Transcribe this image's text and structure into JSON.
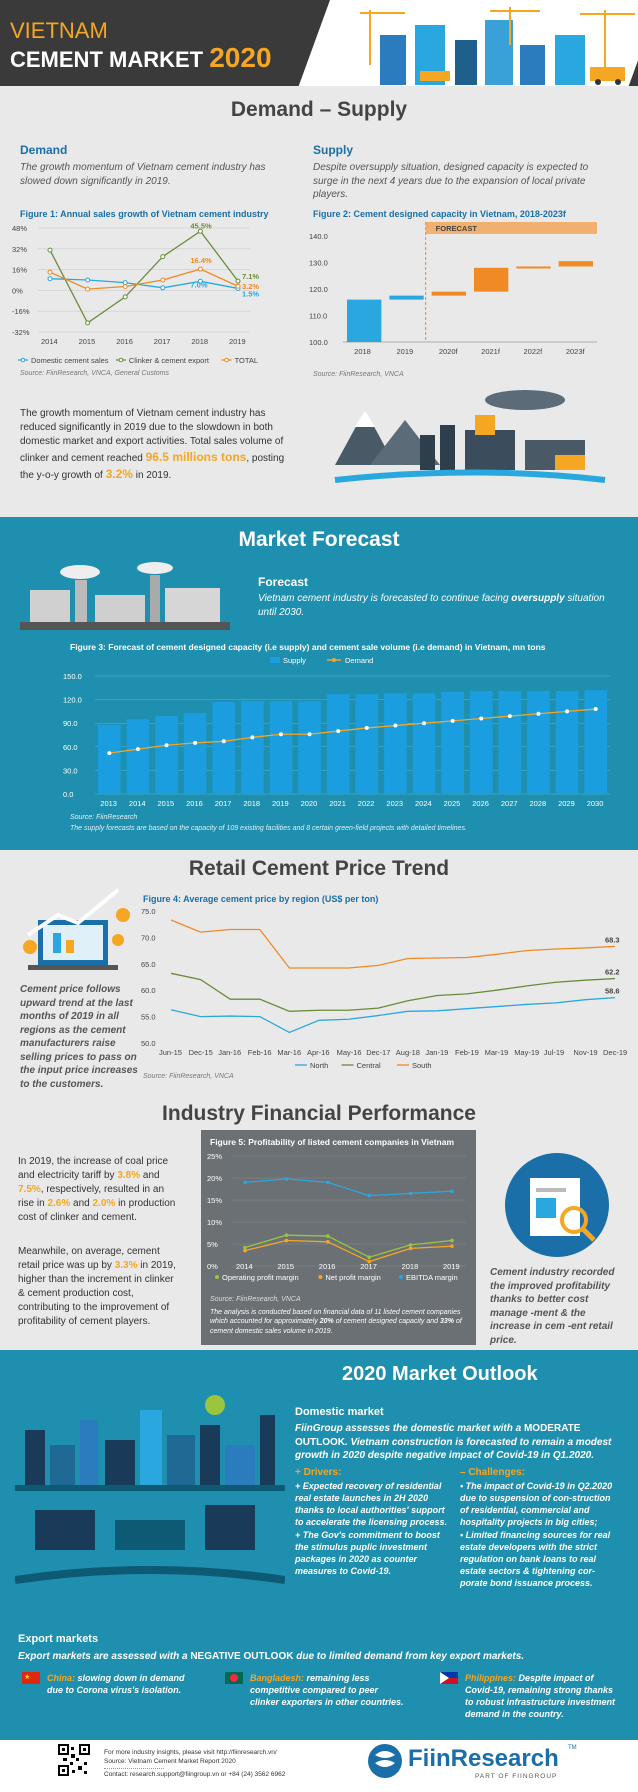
{
  "header": {
    "line1": "VIETNAM",
    "line2": "CEMENT MARKET",
    "year": "2020"
  },
  "demand_supply": {
    "title": "Demand – Supply",
    "demand_heading": "Demand",
    "demand_text": "The growth momentum of Vietnam cement industry has slowed down significantly in 2019.",
    "supply_heading": "Supply",
    "supply_text": "Despite oversupply situation, designed capacity is expected to surge in the next 4 years due to the expansion of local private players.",
    "para1": "The growth momentum of Vietnam cement industry has reduced significantly in 2019 due to the slowdown in both domestic market and export activities. Total sales volume of clinker and cement reached ",
    "para1_hl1": "96.5 millions tons",
    "para1_mid": ", posting the y-o-y growth of ",
    "para1_hl2": "3.2%",
    "para1_end": " in 2019."
  },
  "fig1": {
    "title": "Figure 1: Annual sales growth of Vietnam cement industry",
    "source": "Source: FiinResearch, VNCA, General Customs",
    "legend": [
      "Domestic cement sales",
      "Clinker & cement export",
      "TOTAL"
    ],
    "labels": [
      "45.5%",
      "16.4%",
      "7.0%",
      "7.1%",
      "3.2%",
      "1.5%"
    ]
  },
  "fig2": {
    "title": "Figure 2: Cement designed capacity in Vietnam, 2018-2023f",
    "forecast_label": "FORECAST",
    "source": "Source: FiinResearch, VNCA"
  },
  "market_forecast": {
    "title": "Market Forecast",
    "heading": "Forecast",
    "text_a": "Vietnam cement industry is forecasted to continue facing ",
    "text_b": "oversupply",
    "text_c": " situation until 2030.",
    "fig_title": "Figure 3: Forecast of cement designed capacity (i.e supply) and cement sale volume (i.e demand) in Vietnam, mn tons",
    "source": "Source: FiinResearch",
    "note": "The supply forecasts are based on the capacity of 109 existing facilities and 8 certain green-field projects with detailed timelines."
  },
  "retail": {
    "title": "Retail Cement Price Trend",
    "fig_title": "Figure 4: Average cement price by region (US$ per ton)",
    "side_text": "Cement price follows upward trend at the last months of 2019 in all regions as the cement manufacturers raise selling prices to pass on the input price increases to the customers.",
    "source": "Source: FiinResearch, VNCA"
  },
  "financial": {
    "title": "Industry Financial Performance",
    "p1_a": "In 2019, the increase of coal price and electricity tariff by ",
    "p1_h1": "3.8%",
    "p1_b": " and ",
    "p1_h2": "7.5%",
    "p1_c": ", respectively, resulted in an rise in ",
    "p1_h3": "2.6%",
    "p1_d": " and ",
    "p1_h4": "2.0%",
    "p1_e": " in production cost of clinker and cement.",
    "p2_a": "Meanwhile, on average, cement retail price was up by ",
    "p2_h": "3.3%",
    "p2_b": " in 2019, higher than the increment in clinker & cement production cost, contributing to the improvement of profitability of cement players.",
    "fig_title": "Figure 5: Profitability of listed cement companies in Vietnam",
    "source": "Source: FiinResearch, VNCA",
    "note_a": "The analysis is conducted based on financial data of 11 listed cement companies which accounted for approximately ",
    "note_h1": "20%",
    "note_b": " of cement designed capacity and ",
    "note_h2": "33%",
    "note_c": " of cement domestic sales volume in 2019.",
    "right_text": "Cement industry recorded the improved profitability thanks to better cost manage -ment & the increase in cem -ent retail price."
  },
  "outlook": {
    "title": "2020 Market Outlook",
    "domestic_heading": "Domestic market",
    "domestic_a": "FiinGroup assesses the domestic market with a ",
    "domestic_h": "MODERATE OUTLOOK",
    "domestic_b": ". Vietnam construction is forecasted to remain a modest growth in 2020 despite negative impact of Covid-19 in Q1.2020.",
    "drivers_heading": "+ Drivers:",
    "drivers": [
      "+ Expected recovery of residential real estate launches in 2H 2020 thanks to local authorities' support to accelerate the licensing process.",
      "+ The Gov's commitment to boost the stimulus puplic investment packages in 2020 as counter measures to Covid-19."
    ],
    "challenges_heading": "– Challenges:",
    "challenges": [
      "• The impact of Covid-19 in Q2.2020 due to suspension of con-struction of residential, commercial and hospitality projects in big cities;",
      "• Limited financing sources for real estate developers with the strict regulation on bank loans to real estate sectors & tightening cor-porate bond issuance process."
    ],
    "export_heading": "Export markets",
    "export_a": "Export markets are assessed with a ",
    "export_h": "NEGATIVE OUTLOOK",
    "export_b": " due to limited demand from key export markets.",
    "countries": [
      {
        "name": "China:",
        "text": " slowing down in demand due to Corona virus's isolation."
      },
      {
        "name": "Bangladesh:",
        "text": " remaining less competitive compared to peer clinker exporters in other countries."
      },
      {
        "name": "Philippines:",
        "text": " Despite impact of Covid-19, remaining strong thanks to robust infrastructure investment demand in the country."
      }
    ]
  },
  "footer": {
    "line1": "For more industry insights, please visit http://fiinresearch.vn/",
    "line2": "Source: Vietnam Cement Market Report 2020",
    "line3": "Contact: research.support@fiingroup.vn or +84 (24) 3562 6962",
    "brand": "FiinResearch",
    "tm": "TM",
    "tagline": "PART OF FIINGROUP"
  },
  "chart_data": [
    {
      "type": "line",
      "title": "Figure 1: Annual sales growth of Vietnam cement industry",
      "x": [
        2014,
        2015,
        2016,
        2017,
        2018,
        2019
      ],
      "ylim": [
        -32,
        48
      ],
      "yticks": [
        "48%",
        "32%",
        "16%",
        "0%",
        "-16%",
        "-32%"
      ],
      "series": [
        {
          "name": "Domestic cement sales",
          "color": "#29a8e0",
          "values": [
            9,
            8,
            6,
            2,
            7,
            1.5
          ]
        },
        {
          "name": "Clinker & cement export",
          "color": "#6a8c3a",
          "values": [
            31,
            -25,
            -5,
            26,
            45.5,
            7.1
          ]
        },
        {
          "name": "TOTAL",
          "color": "#f08a24",
          "values": [
            14,
            1,
            3,
            8,
            16.4,
            3.2
          ]
        }
      ]
    },
    {
      "type": "bar",
      "title": "Figure 2: Cement designed capacity in Vietnam, 2018-2023f",
      "categories": [
        "2018",
        "2019",
        "2020f",
        "2021f",
        "2022f",
        "2023f"
      ],
      "ylim": [
        100,
        140
      ],
      "yticks": [
        "140.0",
        "130.0",
        "120.0",
        "110.0",
        "100.0"
      ],
      "waterfall": [
        {
          "start": 100,
          "end": 116,
          "color": "#29a8e0"
        },
        {
          "start": 116,
          "end": 117.5,
          "color": "#29a8e0"
        },
        {
          "start": 117.5,
          "end": 119,
          "color": "#f08a24"
        },
        {
          "start": 119,
          "end": 128,
          "color": "#f08a24"
        },
        {
          "start": 128,
          "end": 128.5,
          "color": "#f08a24"
        },
        {
          "start": 128.5,
          "end": 130.5,
          "color": "#f08a24"
        }
      ]
    },
    {
      "type": "bar",
      "title": "Figure 3: Forecast of cement designed capacity (i.e supply) and cement sale volume (i.e demand) in Vietnam, mn tons",
      "categories": [
        "2013",
        "2014",
        "2015",
        "2016",
        "2017",
        "2018",
        "2019",
        "2020",
        "2021",
        "2022",
        "2023",
        "2024",
        "2025",
        "2026",
        "2027",
        "2028",
        "2029",
        "2030"
      ],
      "ylim": [
        0,
        150
      ],
      "yticks": [
        "150.0",
        "120.0",
        "90.0",
        "60.0",
        "30.0",
        "0.0"
      ],
      "series": [
        {
          "name": "Supply",
          "color": "#1a9ee0",
          "values": [
            88,
            95,
            99,
            103,
            117,
            118,
            118,
            118,
            127,
            127,
            128,
            128,
            130,
            131,
            131,
            131,
            131,
            132
          ]
        },
        {
          "name": "Demand",
          "color": "#f5a623",
          "values": [
            52,
            57,
            62,
            65,
            67,
            72,
            76,
            76,
            80,
            84,
            87,
            90,
            93,
            96,
            99,
            102,
            105,
            108
          ]
        }
      ]
    },
    {
      "type": "line",
      "title": "Figure 4: Average cement price by region (US$ per ton)",
      "categories": [
        "Jun-15",
        "Dec-15",
        "Jan-16",
        "Feb-16",
        "Mar-16",
        "Apr-16",
        "May-16",
        "Dec-17",
        "Aug-18",
        "Jan-19",
        "Feb-19",
        "Mar-19",
        "May-19",
        "Jul-19",
        "Nov-19",
        "Dec-19"
      ],
      "ylim": [
        50,
        75
      ],
      "yticks": [
        "75.0",
        "70.0",
        "65.0",
        "60.0",
        "55.0",
        "50.0"
      ],
      "series": [
        {
          "name": "North",
          "color": "#29a8e0",
          "values": [
            56.3,
            55.0,
            55.1,
            55.0,
            52.0,
            54.3,
            54.5,
            55.2,
            56.0,
            56.1,
            56.5,
            56.9,
            57.3,
            57.6,
            58.2,
            58.6
          ]
        },
        {
          "name": "Central",
          "color": "#6a8c3a",
          "values": [
            63.2,
            62.0,
            58.3,
            58.3,
            56.0,
            56.2,
            56.2,
            56.6,
            58.0,
            59.0,
            59.3,
            60.0,
            60.8,
            61.5,
            61.9,
            62.2
          ]
        },
        {
          "name": "South",
          "color": "#f08a24",
          "values": [
            73.3,
            71.0,
            71.5,
            71.5,
            64.2,
            64.2,
            64.2,
            64.7,
            66.0,
            66.1,
            66.2,
            66.8,
            67.5,
            67.8,
            68.0,
            68.3
          ]
        }
      ],
      "end_labels": [
        "68.3",
        "62.2",
        "58.6"
      ]
    },
    {
      "type": "line",
      "title": "Figure 5: Profitability of listed cement companies in Vietnam",
      "x": [
        2014,
        2015,
        2016,
        2017,
        2018,
        2019
      ],
      "ylim": [
        0,
        25
      ],
      "yticks": [
        "25%",
        "20%",
        "15%",
        "10%",
        "5%",
        "0%"
      ],
      "series": [
        {
          "name": "Operating profit margin",
          "color": "#9bc53d",
          "values": [
            4.2,
            7.0,
            6.8,
            2.0,
            4.8,
            5.8
          ]
        },
        {
          "name": "Net profit margin",
          "color": "#f5a623",
          "values": [
            3.5,
            5.8,
            5.5,
            1.0,
            4.0,
            4.5
          ]
        },
        {
          "name": "EBITDA margin",
          "color": "#29a8e0",
          "values": [
            19.0,
            19.8,
            19.0,
            16.0,
            16.5,
            17.0
          ]
        }
      ]
    }
  ]
}
